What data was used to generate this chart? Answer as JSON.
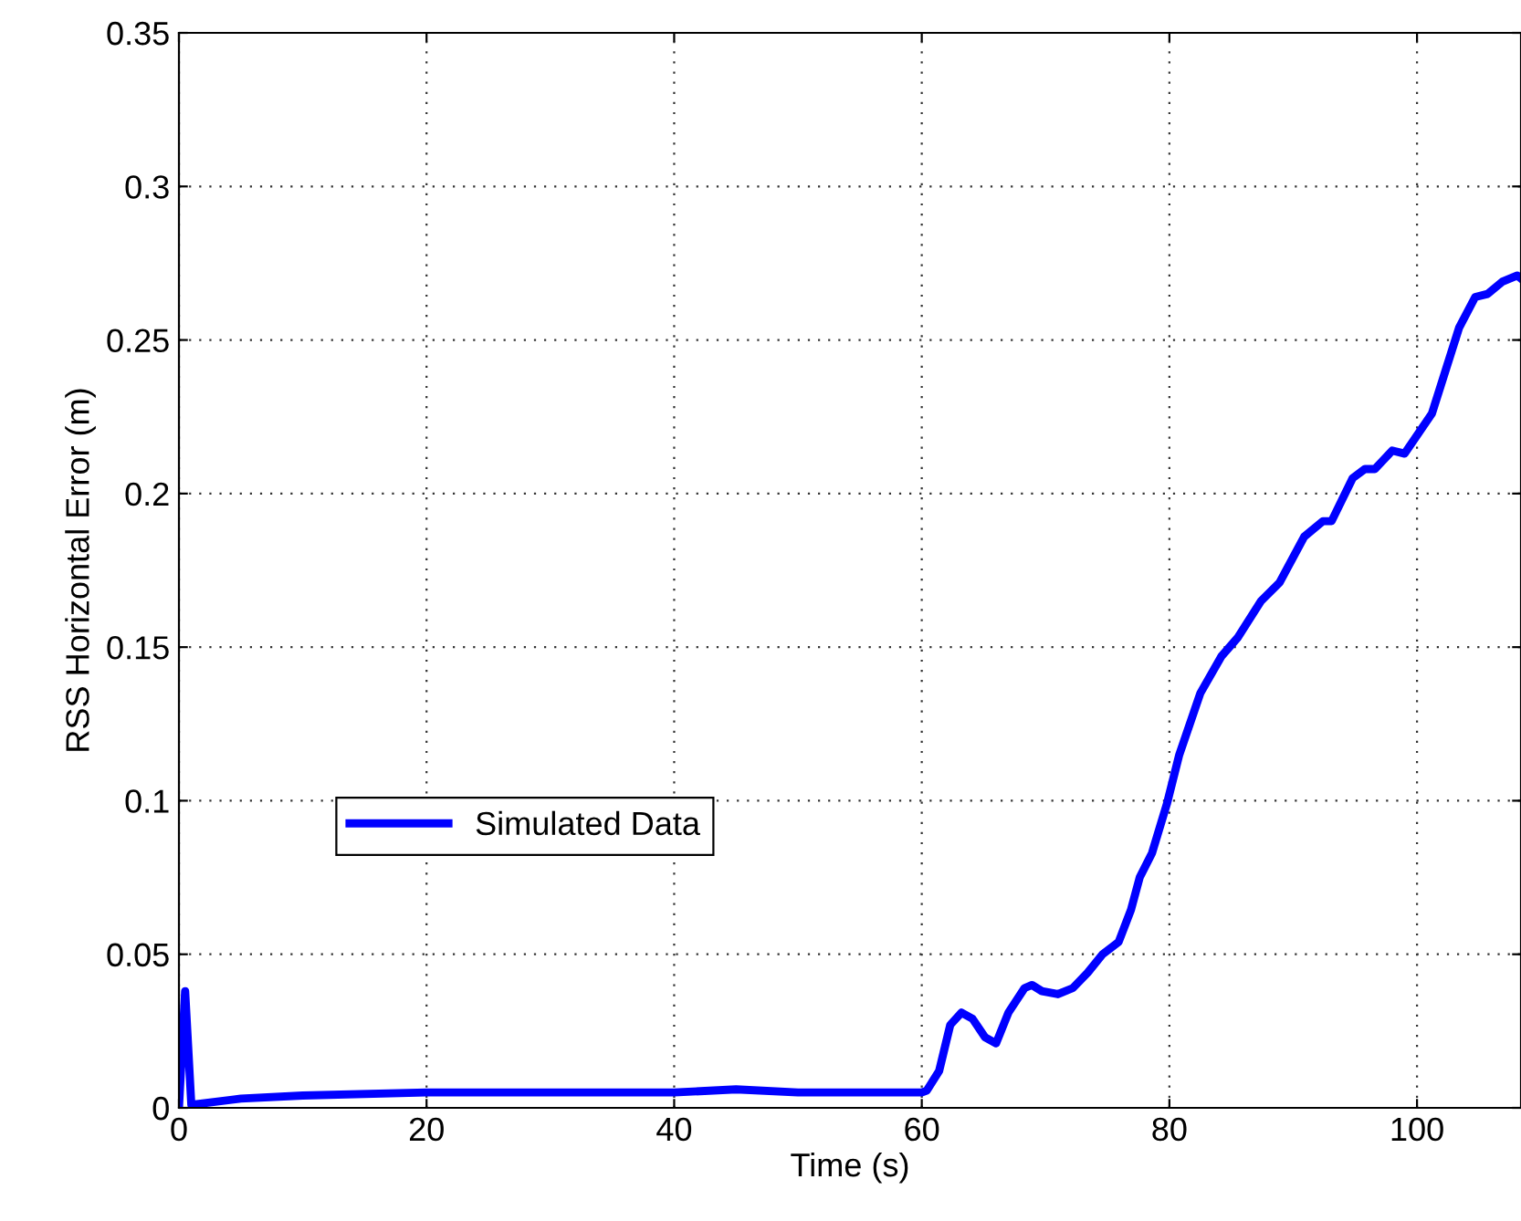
{
  "chart_data": {
    "type": "line",
    "xlabel": "Time (s)",
    "ylabel": "RSS Horizontal Error (m)",
    "xlim": [
      0,
      108.4
    ],
    "ylim": [
      0,
      0.35
    ],
    "xticks": [
      0,
      20,
      40,
      60,
      80,
      100
    ],
    "yticks": [
      0,
      0.05,
      0.1,
      0.15,
      0.2,
      0.25,
      0.3,
      0.35
    ],
    "grid": true,
    "legend": "left",
    "line_style": "solid",
    "marker": "none",
    "series": [
      {
        "name": "Simulated Data",
        "color": "#0000ff",
        "x": [
          0,
          0.5,
          1,
          5,
          10,
          20,
          30,
          40,
          45,
          50,
          55,
          60,
          60.4,
          61.4,
          62.3,
          63.2,
          64.1,
          65.1,
          66.0,
          67.0,
          68.3,
          68.9,
          69.7,
          71.0,
          72.2,
          73.4,
          74.6,
          75.9,
          76.9,
          77.6,
          78.6,
          79.8,
          80.8,
          82.5,
          84.2,
          85.5,
          87.4,
          88.9,
          90.9,
          92.4,
          93.1,
          94.8,
          95.8,
          96.6,
          98.0,
          99.0,
          101.2,
          103.4,
          104.7,
          105.7,
          106.9,
          108.1,
          108.4
        ],
        "values": [
          0,
          0.038,
          0.001,
          0.003,
          0.004,
          0.005,
          0.005,
          0.005,
          0.006,
          0.005,
          0.005,
          0.005,
          0.0056,
          0.012,
          0.027,
          0.031,
          0.029,
          0.023,
          0.021,
          0.031,
          0.039,
          0.04,
          0.038,
          0.037,
          0.039,
          0.044,
          0.05,
          0.054,
          0.0645,
          0.075,
          0.083,
          0.099,
          0.115,
          0.135,
          0.147,
          0.153,
          0.165,
          0.171,
          0.186,
          0.191,
          0.191,
          0.205,
          0.208,
          0.208,
          0.214,
          0.213,
          0.226,
          0.254,
          0.264,
          0.265,
          0.269,
          0.271,
          0.27
        ]
      }
    ]
  }
}
